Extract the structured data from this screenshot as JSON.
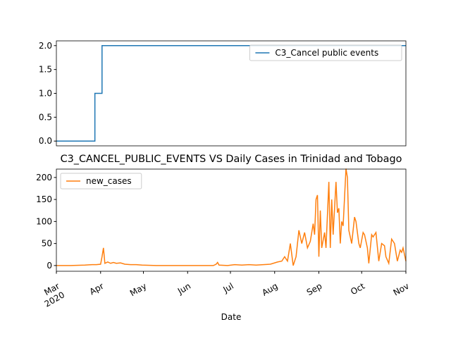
{
  "chart_data": [
    {
      "type": "line",
      "ylim": [
        -0.1,
        2.1
      ],
      "yticks": [
        {
          "value": 0,
          "label": "0.0"
        },
        {
          "value": 0.5,
          "label": "0.5"
        },
        {
          "value": 1,
          "label": "1.0"
        },
        {
          "value": 1.5,
          "label": "1.5"
        },
        {
          "value": 2,
          "label": "2.0"
        }
      ],
      "xlim": [
        0,
        245
      ],
      "legend": "upper right",
      "series": [
        {
          "name": "C3_Cancel public events",
          "color": "#1f77b4",
          "x": [
            0,
            27,
            27,
            32,
            32,
            245
          ],
          "values": [
            0,
            0,
            1,
            1,
            2,
            2
          ]
        }
      ]
    },
    {
      "type": "line",
      "title": "C3_CANCEL_PUBLIC_EVENTS VS Daily Cases in Trinidad and Tobago",
      "xlabel": "Date",
      "ylim": [
        -13,
        219
      ],
      "yticks": [
        0,
        50,
        100,
        150,
        200
      ],
      "xlim": [
        0,
        245
      ],
      "xticks": [
        {
          "value": 0,
          "label": "Mar\n2020"
        },
        {
          "value": 31,
          "label": "Apr"
        },
        {
          "value": 61,
          "label": "May"
        },
        {
          "value": 92,
          "label": "Jun"
        },
        {
          "value": 122,
          "label": "Jul"
        },
        {
          "value": 153,
          "label": "Aug"
        },
        {
          "value": 184,
          "label": "Sep"
        },
        {
          "value": 214,
          "label": "Oct"
        },
        {
          "value": 245,
          "label": "Nov"
        }
      ],
      "legend": "upper left",
      "series": [
        {
          "name": "new_cases",
          "color": "#ff7f0e",
          "x": [
            0,
            10,
            20,
            25,
            28,
            31,
            32,
            33,
            34,
            36,
            38,
            40,
            42,
            45,
            48,
            52,
            56,
            60,
            70,
            80,
            90,
            100,
            110,
            112,
            113,
            114,
            120,
            125,
            130,
            135,
            140,
            145,
            150,
            155,
            158,
            160,
            162,
            164,
            166,
            168,
            170,
            172,
            174,
            176,
            178,
            180,
            181,
            182,
            183,
            184,
            185,
            186,
            188,
            189,
            191,
            192,
            193,
            194,
            196,
            197,
            198,
            199,
            200,
            201,
            203,
            204,
            205,
            207,
            209,
            210,
            212,
            213,
            215,
            216,
            218,
            219,
            221,
            222,
            224,
            226,
            228,
            230,
            231,
            233,
            235,
            237,
            239,
            241,
            242,
            243,
            245
          ],
          "values": [
            0,
            0,
            1,
            2,
            2,
            3,
            20,
            40,
            5,
            8,
            5,
            7,
            5,
            6,
            3,
            2,
            2,
            1,
            0,
            0,
            0,
            0,
            0,
            3,
            7,
            1,
            0,
            2,
            1,
            2,
            1,
            2,
            3,
            8,
            10,
            20,
            10,
            50,
            0,
            20,
            80,
            50,
            75,
            40,
            55,
            95,
            70,
            150,
            160,
            20,
            125,
            40,
            75,
            40,
            190,
            40,
            150,
            70,
            190,
            120,
            130,
            50,
            100,
            90,
            220,
            200,
            80,
            50,
            110,
            100,
            50,
            40,
            75,
            70,
            40,
            5,
            70,
            65,
            75,
            10,
            50,
            45,
            20,
            5,
            60,
            50,
            10,
            35,
            30,
            40,
            10
          ]
        }
      ]
    }
  ]
}
